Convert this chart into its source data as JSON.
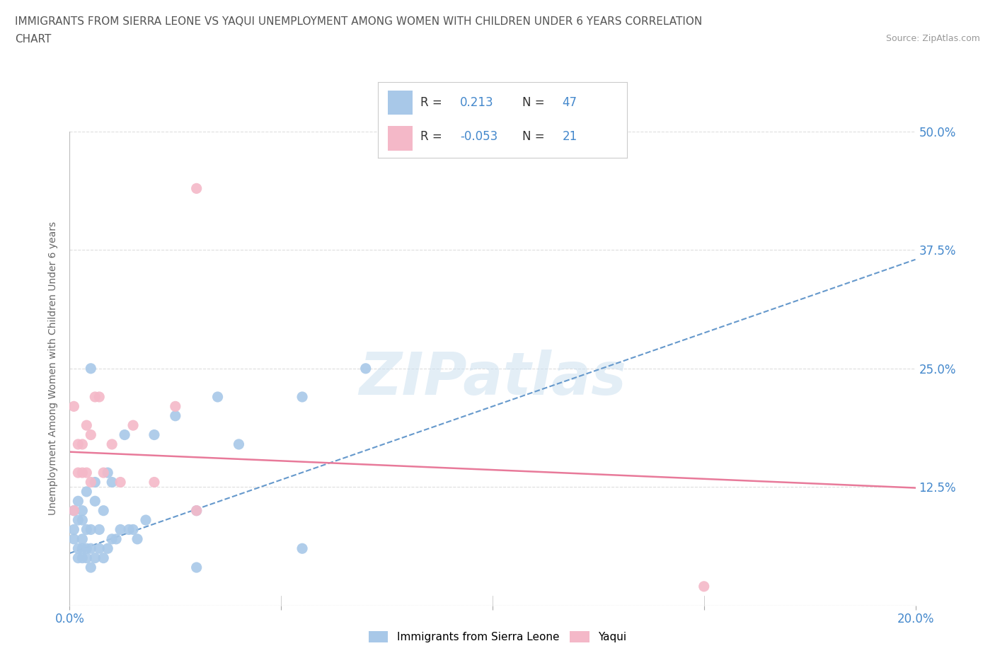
{
  "title_line1": "IMMIGRANTS FROM SIERRA LEONE VS YAQUI UNEMPLOYMENT AMONG WOMEN WITH CHILDREN UNDER 6 YEARS CORRELATION",
  "title_line2": "CHART",
  "source": "Source: ZipAtlas.com",
  "ylabel": "Unemployment Among Women with Children Under 6 years",
  "xlim": [
    0.0,
    0.2
  ],
  "ylim": [
    0.0,
    0.5
  ],
  "yticks": [
    0.0,
    0.125,
    0.25,
    0.375,
    0.5
  ],
  "ytick_labels": [
    "",
    "12.5%",
    "25.0%",
    "37.5%",
    "50.0%"
  ],
  "xticks": [
    0.0,
    0.05,
    0.1,
    0.15,
    0.2
  ],
  "xtick_labels": [
    "0.0%",
    "",
    "",
    "",
    "20.0%"
  ],
  "color_blue": "#a8c8e8",
  "color_pink": "#f4b8c8",
  "color_blue_line": "#6699cc",
  "color_pink_line": "#e87a9a",
  "color_blue_text": "#4488cc",
  "watermark_text": "ZIPatlas",
  "blue_scatter_x": [
    0.001,
    0.001,
    0.001,
    0.002,
    0.002,
    0.002,
    0.002,
    0.003,
    0.003,
    0.003,
    0.003,
    0.003,
    0.004,
    0.004,
    0.004,
    0.004,
    0.005,
    0.005,
    0.005,
    0.005,
    0.006,
    0.006,
    0.006,
    0.007,
    0.007,
    0.008,
    0.008,
    0.009,
    0.009,
    0.01,
    0.01,
    0.011,
    0.012,
    0.013,
    0.014,
    0.015,
    0.016,
    0.018,
    0.02,
    0.025,
    0.03,
    0.035,
    0.04,
    0.055,
    0.07,
    0.03,
    0.055
  ],
  "blue_scatter_y": [
    0.07,
    0.08,
    0.1,
    0.05,
    0.06,
    0.09,
    0.11,
    0.05,
    0.06,
    0.07,
    0.09,
    0.1,
    0.05,
    0.06,
    0.08,
    0.12,
    0.04,
    0.06,
    0.08,
    0.25,
    0.05,
    0.11,
    0.13,
    0.06,
    0.08,
    0.05,
    0.1,
    0.06,
    0.14,
    0.07,
    0.13,
    0.07,
    0.08,
    0.18,
    0.08,
    0.08,
    0.07,
    0.09,
    0.18,
    0.2,
    0.1,
    0.22,
    0.17,
    0.22,
    0.25,
    0.04,
    0.06
  ],
  "pink_scatter_x": [
    0.001,
    0.001,
    0.002,
    0.002,
    0.003,
    0.003,
    0.004,
    0.004,
    0.005,
    0.005,
    0.006,
    0.007,
    0.008,
    0.01,
    0.012,
    0.015,
    0.02,
    0.025,
    0.03,
    0.03,
    0.15
  ],
  "pink_scatter_y": [
    0.1,
    0.21,
    0.14,
    0.17,
    0.14,
    0.17,
    0.14,
    0.19,
    0.13,
    0.18,
    0.22,
    0.22,
    0.14,
    0.17,
    0.13,
    0.19,
    0.13,
    0.21,
    0.44,
    0.1,
    0.02
  ],
  "blue_trend_x": [
    0.0,
    0.2
  ],
  "blue_trend_y": [
    0.055,
    0.365
  ],
  "pink_trend_x": [
    0.0,
    0.2
  ],
  "pink_trend_y": [
    0.162,
    0.124
  ],
  "background_color": "#ffffff",
  "grid_color": "#dddddd"
}
